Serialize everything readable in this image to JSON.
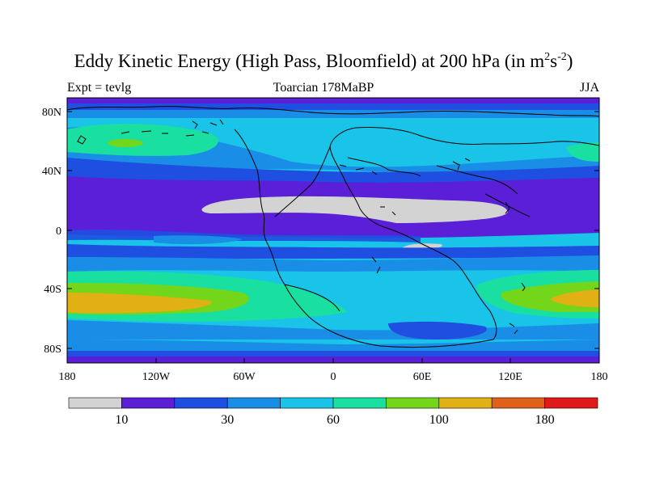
{
  "title": {
    "main": "Eddy Kinetic Energy (High Pass, Bloomfield) at 200 hPa (in m",
    "sup1": "2",
    "mid": "s",
    "sup2": "-2",
    "end": ")"
  },
  "subtitle_left": "Expt = tevlg",
  "subtitle_center": "Toarcian 178MaBP",
  "subtitle_right": "JJA",
  "map": {
    "lon_ticks": [
      "180",
      "120W",
      "60W",
      "0",
      "60E",
      "120E",
      "180"
    ],
    "lat_ticks": [
      "80N",
      "40N",
      "0",
      "40S",
      "80S"
    ]
  },
  "colorbar": {
    "labels": [
      "10",
      "30",
      "60",
      "100",
      "180"
    ],
    "colors": [
      "#d3d3d3",
      "#5a1fd6",
      "#1e4fe0",
      "#1a8ee6",
      "#19c4e8",
      "#19e0a0",
      "#74d61a",
      "#e0b015",
      "#e0601a",
      "#e01a1a"
    ]
  }
}
